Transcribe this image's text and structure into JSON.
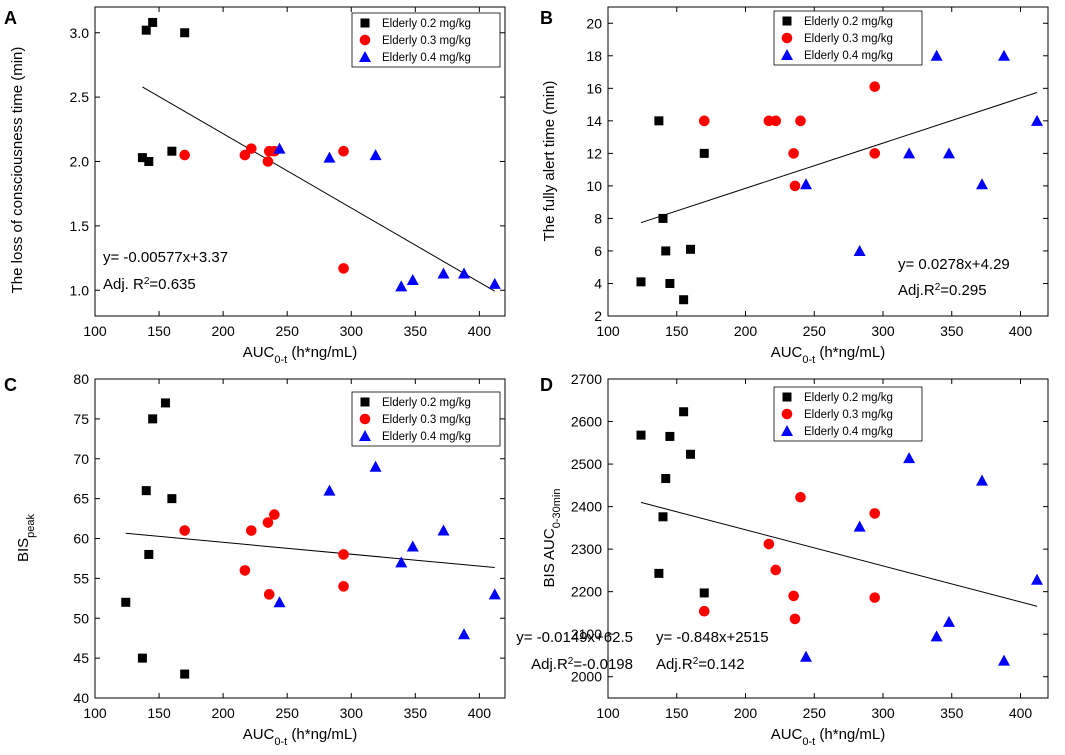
{
  "chart_data": [
    {
      "type": "scatter",
      "panel": "A",
      "xlabel": {
        "main": "AUC",
        "sub": "0-t",
        "unit": " (h*ng/mL)"
      },
      "ylabel": {
        "main": "The loss of consciousness time (min)",
        "sub": ""
      },
      "xlim": [
        100,
        420
      ],
      "ylim": [
        0.8,
        3.2
      ],
      "xticks": [
        100,
        150,
        200,
        250,
        300,
        350,
        400
      ],
      "yticks": [
        1.0,
        1.5,
        2.0,
        2.5,
        3.0
      ],
      "yticks_text": [
        "1.0",
        "1.5",
        "2.0",
        "2.5",
        "3.0"
      ],
      "series": [
        {
          "name": "Elderly 0.2 mg/kg",
          "marker": "square",
          "color": "#000000",
          "points": [
            [
              137,
              2.03
            ],
            [
              140,
              3.02
            ],
            [
              142,
              2.0
            ],
            [
              145,
              3.08
            ],
            [
              160,
              2.08
            ],
            [
              170,
              3.0
            ]
          ]
        },
        {
          "name": "Elderly 0.3 mg/kg",
          "marker": "circle",
          "color": "#ff0000",
          "points": [
            [
              170,
              2.05
            ],
            [
              217,
              2.05
            ],
            [
              222,
              2.1
            ],
            [
              235,
              2.0
            ],
            [
              236,
              2.08
            ],
            [
              240,
              2.08
            ],
            [
              294,
              2.08
            ],
            [
              294,
              1.17
            ]
          ]
        },
        {
          "name": "Elderly 0.4 mg/kg",
          "marker": "triangle",
          "color": "#0000ff",
          "points": [
            [
              244,
              2.1
            ],
            [
              283,
              2.03
            ],
            [
              319,
              2.05
            ],
            [
              339,
              1.03
            ],
            [
              348,
              1.08
            ],
            [
              372,
              1.13
            ],
            [
              388,
              1.13
            ],
            [
              412,
              1.05
            ]
          ]
        }
      ],
      "fit": {
        "slope": -0.00577,
        "intercept": 3.37,
        "x_range": [
          137,
          412
        ]
      },
      "equation": "y= -0.00577x+3.37",
      "r2": {
        "prefix": "Adj. R",
        "sup": "2",
        "value": "=0.635"
      },
      "legend_position": "top-right",
      "annotation_position": "bottom-left"
    },
    {
      "type": "scatter",
      "panel": "B",
      "xlabel": {
        "main": "AUC",
        "sub": "0-t",
        "unit": " (h*ng/mL)"
      },
      "ylabel": {
        "main": "The fully alert time (min)",
        "sub": ""
      },
      "xlim": [
        100,
        420
      ],
      "ylim": [
        2,
        21
      ],
      "xticks": [
        100,
        150,
        200,
        250,
        300,
        350,
        400
      ],
      "yticks": [
        2,
        4,
        6,
        8,
        10,
        12,
        14,
        16,
        18,
        20
      ],
      "yticks_text": [
        "2",
        "4",
        "6",
        "8",
        "10",
        "12",
        "14",
        "16",
        "18",
        "20"
      ],
      "series": [
        {
          "name": "Elderly 0.2 mg/kg",
          "marker": "square",
          "color": "#000000",
          "points": [
            [
              124,
              4.1
            ],
            [
              137,
              14.0
            ],
            [
              140,
              8.0
            ],
            [
              142,
              6.0
            ],
            [
              145,
              4.0
            ],
            [
              155,
              3.0
            ],
            [
              160,
              6.1
            ],
            [
              170,
              12.0
            ]
          ]
        },
        {
          "name": "Elderly 0.3 mg/kg",
          "marker": "circle",
          "color": "#ff0000",
          "points": [
            [
              170,
              14.0
            ],
            [
              217,
              14.0
            ],
            [
              222,
              14.0
            ],
            [
              235,
              12.0
            ],
            [
              236,
              10.0
            ],
            [
              240,
              14.0
            ],
            [
              294,
              16.1
            ],
            [
              294,
              12.0
            ]
          ]
        },
        {
          "name": "Elderly 0.4 mg/kg",
          "marker": "triangle",
          "color": "#0000ff",
          "points": [
            [
              244,
              10.1
            ],
            [
              283,
              6.0
            ],
            [
              319,
              12.0
            ],
            [
              339,
              18.0
            ],
            [
              348,
              12.0
            ],
            [
              372,
              10.1
            ],
            [
              388,
              18.0
            ],
            [
              412,
              14.0
            ]
          ]
        }
      ],
      "fit": {
        "slope": 0.0278,
        "intercept": 4.29,
        "x_range": [
          124,
          412
        ]
      },
      "equation": "y= 0.0278x+4.29",
      "r2": {
        "prefix": "Adj.R",
        "sup": "2",
        "value": "=0.295"
      },
      "legend_position": "top-right",
      "annotation_position": "bottom-right"
    },
    {
      "type": "scatter",
      "panel": "C",
      "xlabel": {
        "main": "AUC",
        "sub": "0-t",
        "unit": " (h*ng/mL)"
      },
      "ylabel": {
        "main": "BIS",
        "sub": "peak"
      },
      "xlim": [
        100,
        420
      ],
      "ylim": [
        40,
        80
      ],
      "xticks": [
        100,
        150,
        200,
        250,
        300,
        350,
        400
      ],
      "yticks": [
        40,
        45,
        50,
        55,
        60,
        65,
        70,
        75,
        80
      ],
      "yticks_text": [
        "40",
        "45",
        "50",
        "55",
        "60",
        "65",
        "70",
        "75",
        "80"
      ],
      "series": [
        {
          "name": "Elderly 0.2 mg/kg",
          "marker": "square",
          "color": "#000000",
          "points": [
            [
              124,
              52
            ],
            [
              137,
              45
            ],
            [
              140,
              66
            ],
            [
              142,
              58
            ],
            [
              145,
              75
            ],
            [
              155,
              77
            ],
            [
              160,
              65
            ],
            [
              170,
              43
            ]
          ]
        },
        {
          "name": "Elderly 0.3 mg/kg",
          "marker": "circle",
          "color": "#ff0000",
          "points": [
            [
              170,
              61
            ],
            [
              217,
              56
            ],
            [
              222,
              61
            ],
            [
              235,
              62
            ],
            [
              236,
              53
            ],
            [
              240,
              63
            ],
            [
              294,
              58
            ],
            [
              294,
              54
            ]
          ]
        },
        {
          "name": "Elderly 0.4 mg/kg",
          "marker": "triangle",
          "color": "#0000ff",
          "points": [
            [
              244,
              52
            ],
            [
              283,
              66
            ],
            [
              319,
              69
            ],
            [
              339,
              57
            ],
            [
              348,
              59
            ],
            [
              372,
              61
            ],
            [
              388,
              48
            ],
            [
              412,
              53
            ]
          ]
        }
      ],
      "fit": {
        "slope": -0.0149,
        "intercept": 62.5,
        "x_range": [
          124,
          412
        ]
      },
      "equation": "y= -0.0149x+62.5",
      "r2": {
        "prefix": "Adj.R",
        "sup": "2",
        "value": "=-0.0198"
      },
      "legend_position": "top-right",
      "annotation_position": "bottom-right"
    },
    {
      "type": "scatter",
      "panel": "D",
      "xlabel": {
        "main": "AUC",
        "sub": "0-t",
        "unit": " (h*ng/mL)"
      },
      "ylabel": {
        "main": "BIS AUC",
        "sub": "0-30min"
      },
      "xlim": [
        100,
        420
      ],
      "ylim": [
        1950,
        2700
      ],
      "xticks": [
        100,
        150,
        200,
        250,
        300,
        350,
        400
      ],
      "yticks": [
        2000,
        2100,
        2200,
        2300,
        2400,
        2500,
        2600,
        2700
      ],
      "yticks_text": [
        "2000",
        "2100",
        "2200",
        "2300",
        "2400",
        "2500",
        "2600",
        "2700"
      ],
      "series": [
        {
          "name": "Elderly 0.2 mg/kg",
          "marker": "square",
          "color": "#000000",
          "points": [
            [
              124,
              2568
            ],
            [
              137,
              2243
            ],
            [
              140,
              2376
            ],
            [
              142,
              2466
            ],
            [
              145,
              2565
            ],
            [
              155,
              2623
            ],
            [
              160,
              2523
            ],
            [
              170,
              2197
            ]
          ]
        },
        {
          "name": "Elderly 0.3 mg/kg",
          "marker": "circle",
          "color": "#ff0000",
          "points": [
            [
              170,
              2154
            ],
            [
              217,
              2312
            ],
            [
              222,
              2251
            ],
            [
              235,
              2190
            ],
            [
              236,
              2136
            ],
            [
              240,
              2422
            ],
            [
              294,
              2384
            ],
            [
              294,
              2186
            ]
          ]
        },
        {
          "name": "Elderly 0.4 mg/kg",
          "marker": "triangle",
          "color": "#0000ff",
          "points": [
            [
              244,
              2047
            ],
            [
              283,
              2353
            ],
            [
              319,
              2514
            ],
            [
              339,
              2095
            ],
            [
              348,
              2129
            ],
            [
              372,
              2461
            ],
            [
              388,
              2038
            ],
            [
              412,
              2228
            ]
          ]
        }
      ],
      "fit": {
        "slope": -0.848,
        "intercept": 2515,
        "x_range": [
          124,
          412
        ]
      },
      "equation": "y= -0.848x+2515",
      "r2": {
        "prefix": "Adj.R",
        "sup": "2",
        "value": "=0.142"
      },
      "legend_position": "top-center",
      "annotation_position": "bottom-left"
    }
  ]
}
